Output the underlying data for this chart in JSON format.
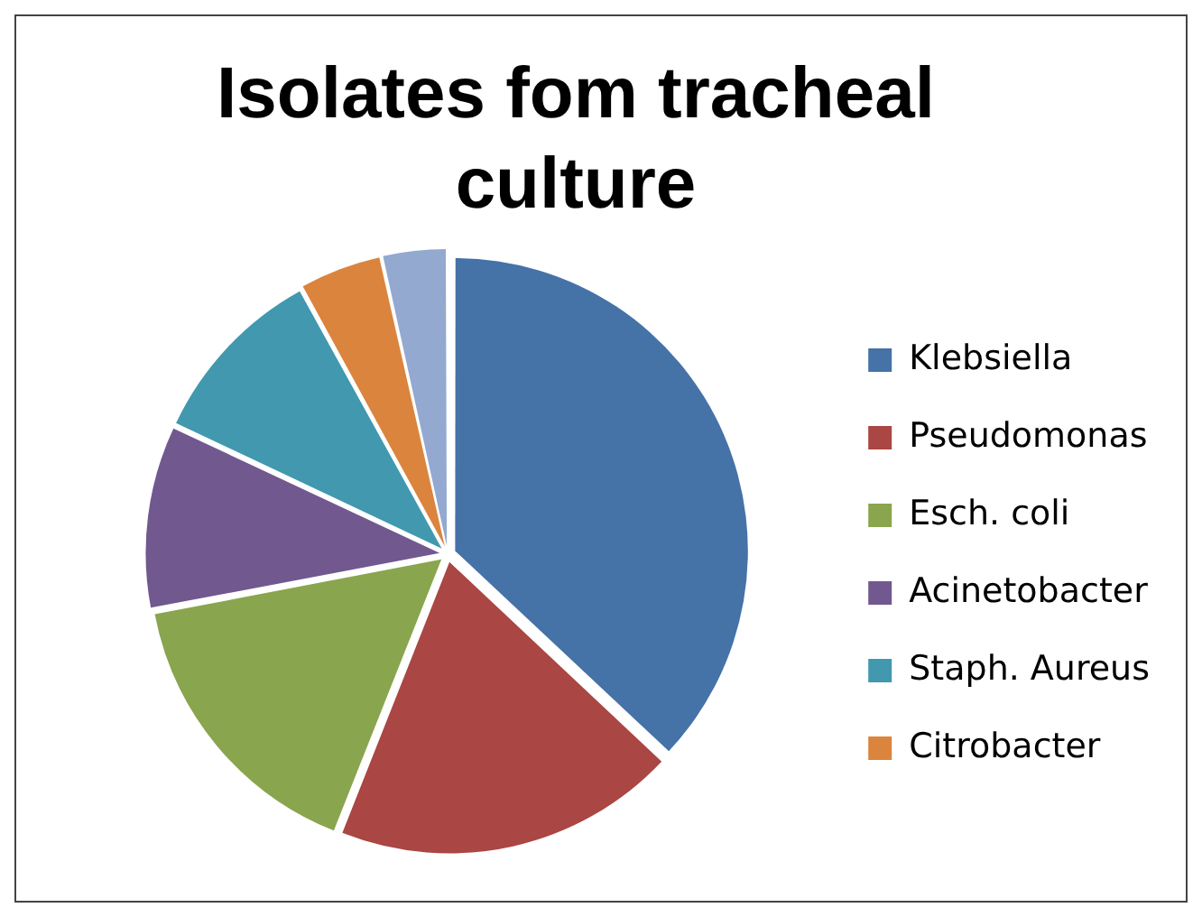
{
  "chart_data": {
    "type": "pie",
    "title": "Isolates fom tracheal culture",
    "categories": [
      "Klebsiella",
      "Pseudomonas",
      "Esch. coli",
      "Acinetobacter",
      "Staph. Aureus",
      "Citrobacter",
      null
    ],
    "values": [
      37,
      19,
      16,
      10,
      10,
      4.5,
      3.5
    ],
    "colors": [
      "#4572a7",
      "#aa4643",
      "#89a54e",
      "#71588f",
      "#4198af",
      "#db843d",
      "#93a9cf"
    ],
    "legend": "right"
  }
}
